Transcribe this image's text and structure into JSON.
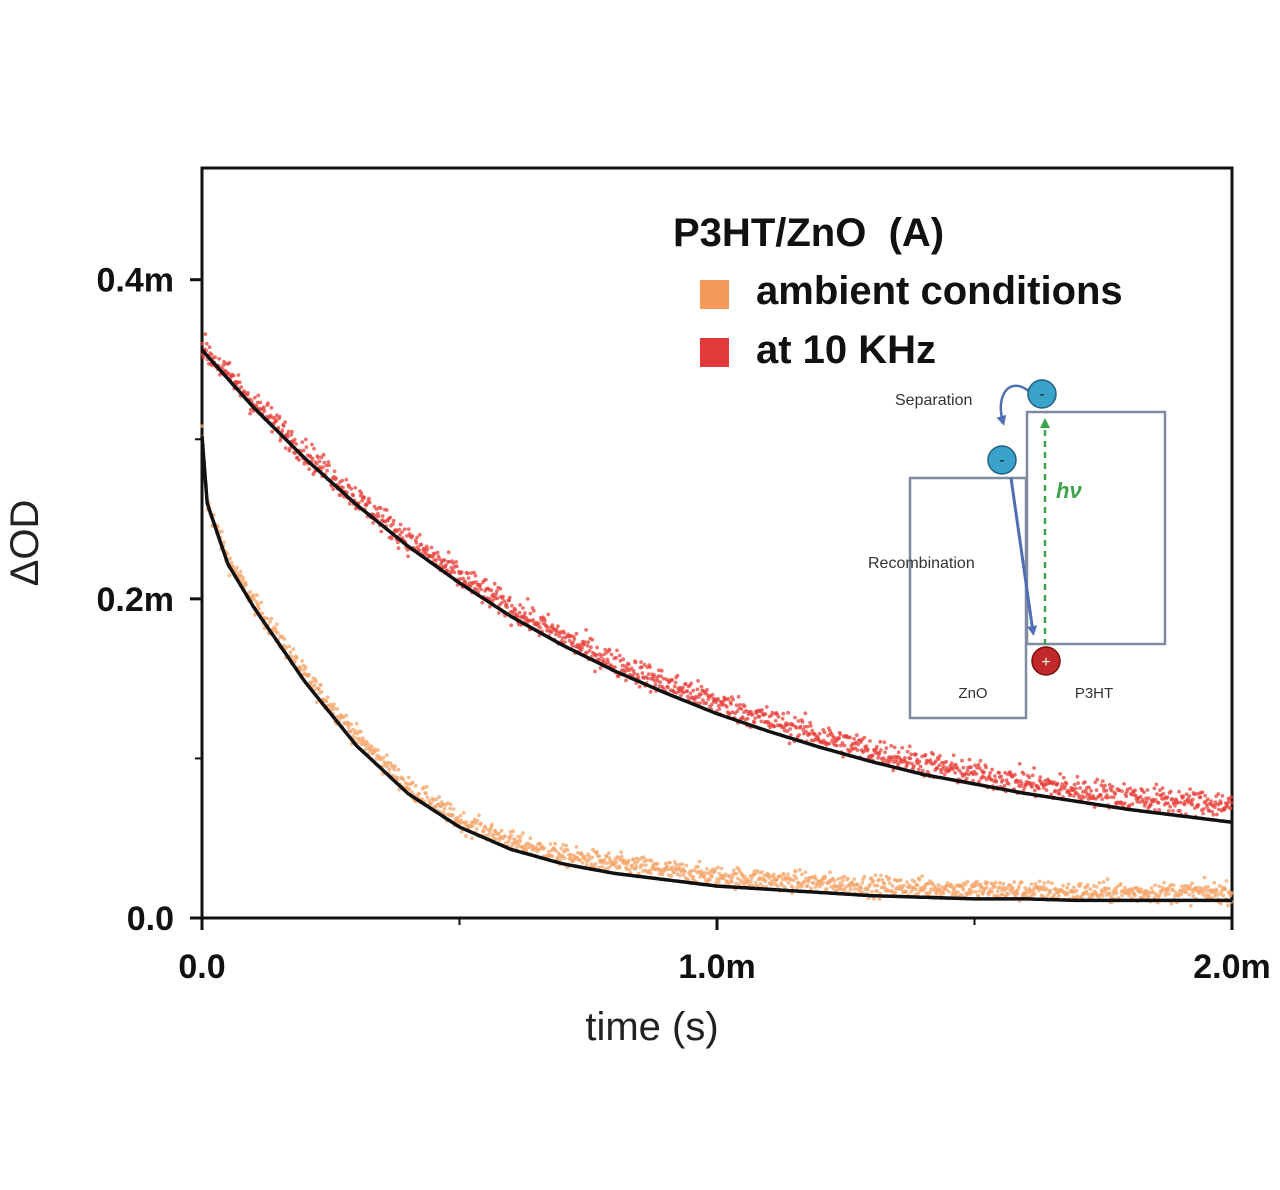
{
  "chart_data": {
    "type": "scatter",
    "title": "",
    "xlabel": "time (s)",
    "ylabel": "ΔOD",
    "xlim": [
      0,
      0.002
    ],
    "ylim": [
      0,
      0.00047
    ],
    "x_ticks": [
      {
        "value": 0,
        "label": "0.0"
      },
      {
        "value": 0.001,
        "label": "1.0m"
      },
      {
        "value": 0.002,
        "label": "2.0m"
      }
    ],
    "y_ticks": [
      {
        "value": 0,
        "label": "0.0"
      },
      {
        "value": 0.0002,
        "label": "0.2m"
      },
      {
        "value": 0.0004,
        "label": "0.4m"
      }
    ],
    "grid": false,
    "legend": {
      "title": "P3HT/ZnO  (A)",
      "placement": "top-right",
      "entries": [
        {
          "label": "ambient conditions",
          "color": "#f39a5a"
        },
        {
          "label": "at 10 KHz",
          "color": "#e23a3a"
        }
      ]
    },
    "series": [
      {
        "name": "ambient conditions",
        "color": "#f5a66a",
        "x": [
          0,
          1e-05,
          5e-05,
          0.0001,
          0.0002,
          0.0003,
          0.0004,
          0.0005,
          0.0006,
          0.0007,
          0.0008,
          0.0009,
          0.001,
          0.0011,
          0.0012,
          0.0013,
          0.0014,
          0.0015,
          0.0016,
          0.0017,
          0.0018,
          0.0019,
          0.002
        ],
        "y": [
          0.000305,
          0.00026,
          0.000225,
          0.000198,
          0.000152,
          0.000114,
          8.2e-05,
          6.1e-05,
          4.8e-05,
          3.9e-05,
          3.4e-05,
          3e-05,
          2.6e-05,
          2.4e-05,
          2.2e-05,
          2e-05,
          1.9e-05,
          1.8e-05,
          1.7e-05,
          1.6e-05,
          1.6e-05,
          1.6e-05,
          1.6e-05
        ]
      },
      {
        "name": "at 10 KHz",
        "color": "#e8413b",
        "x": [
          0,
          0.0001,
          0.0002,
          0.0003,
          0.0004,
          0.0005,
          0.0006,
          0.0007,
          0.0008,
          0.0009,
          0.001,
          0.0011,
          0.0012,
          0.0013,
          0.0014,
          0.0015,
          0.0016,
          0.0017,
          0.0018,
          0.0019,
          0.002
        ],
        "y": [
          0.000358,
          0.000323,
          0.000292,
          0.000263,
          0.000237,
          0.000214,
          0.000194,
          0.000176,
          0.00016,
          0.000147,
          0.000135,
          0.000124,
          0.000114,
          0.000105,
          9.7e-05,
          9e-05,
          8.5e-05,
          8e-05,
          7.6e-05,
          7.3e-05,
          7.1e-05
        ]
      }
    ],
    "fits": [
      {
        "x": [
          0,
          1e-05,
          5e-05,
          0.0001,
          0.0002,
          0.0003,
          0.0004,
          0.0005,
          0.0006,
          0.0007,
          0.0008,
          0.0009,
          0.001,
          0.0011,
          0.0012,
          0.0013,
          0.0014,
          0.0015,
          0.0016,
          0.0017,
          0.0018,
          0.0019,
          0.002
        ],
        "y": [
          0.000302,
          0.00026,
          0.000222,
          0.000195,
          0.000148,
          0.000108,
          7.8e-05,
          5.7e-05,
          4.3e-05,
          3.4e-05,
          2.8e-05,
          2.4e-05,
          2e-05,
          1.8e-05,
          1.6e-05,
          1.4e-05,
          1.3e-05,
          1.2e-05,
          1.2e-05,
          1.1e-05,
          1.1e-05,
          1.1e-05,
          1.1e-05
        ]
      },
      {
        "x": [
          0,
          0.0001,
          0.0002,
          0.0003,
          0.0004,
          0.0005,
          0.0006,
          0.0007,
          0.0008,
          0.0009,
          0.001,
          0.0011,
          0.0012,
          0.0013,
          0.0014,
          0.0015,
          0.0016,
          0.0017,
          0.0018,
          0.0019,
          0.002
        ],
        "y": [
          0.000356,
          0.00032,
          0.000288,
          0.000259,
          0.000233,
          0.00021,
          0.000189,
          0.000171,
          0.000155,
          0.000141,
          0.000128,
          0.000117,
          0.000107,
          9.8e-05,
          9e-05,
          8.4e-05,
          7.8e-05,
          7.3e-05,
          6.8e-05,
          6.4e-05,
          6e-05
        ]
      }
    ],
    "inset": {
      "labels": {
        "separation": "Separation",
        "recombination": "Recombination",
        "hv": "hν",
        "zno": "ZnO",
        "p3ht": "P3HT",
        "electron_mark": "-",
        "hole_mark": "+"
      },
      "colors": {
        "box": "#7f8ba0",
        "arrow": "#4f6fb5",
        "electron": "#3aa3c9",
        "hole": "#c0282a",
        "hv_arrow": "#3da34a"
      }
    }
  }
}
